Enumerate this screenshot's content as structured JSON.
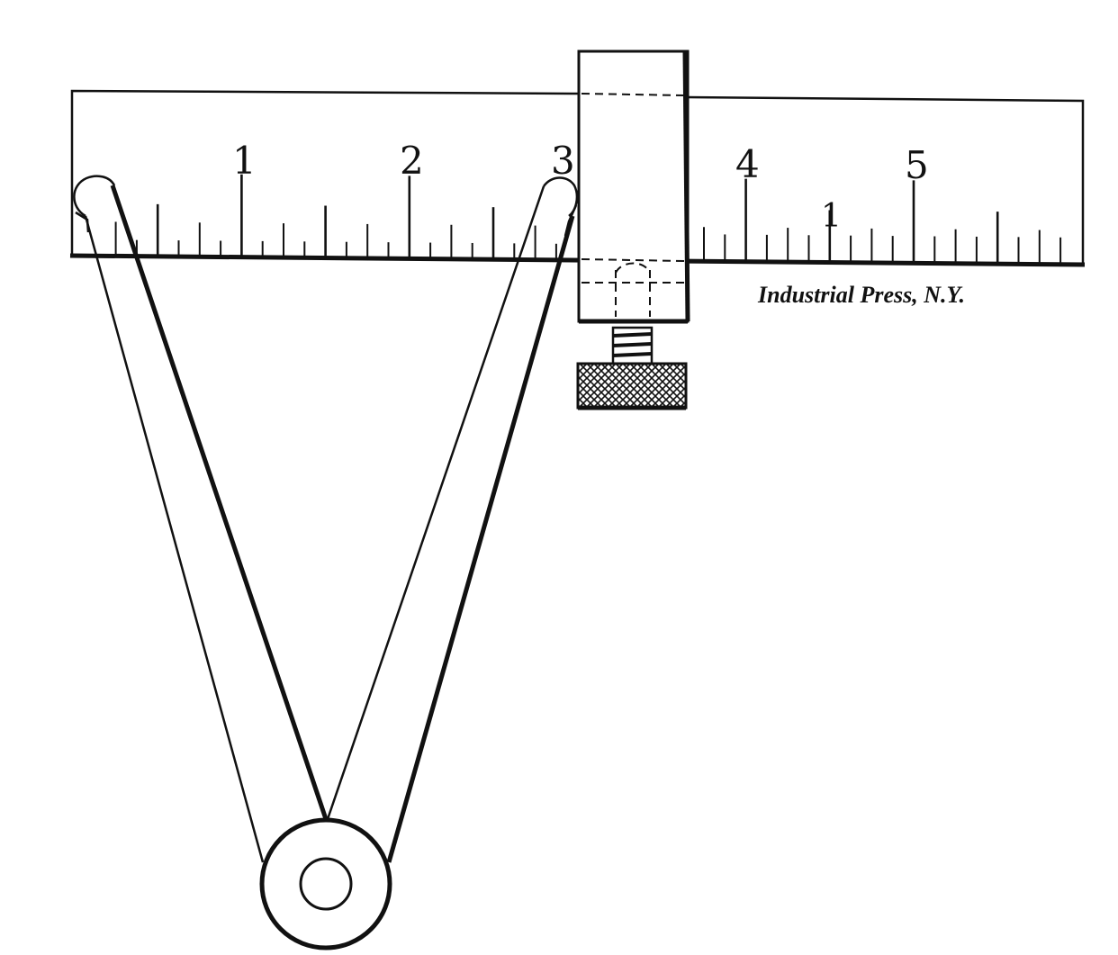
{
  "diagram": {
    "ruler": {
      "numbers": [
        "1",
        "2",
        "3",
        "4",
        "5"
      ],
      "secondary_mark": "1"
    },
    "credit": "Industrial Press, N.Y."
  }
}
